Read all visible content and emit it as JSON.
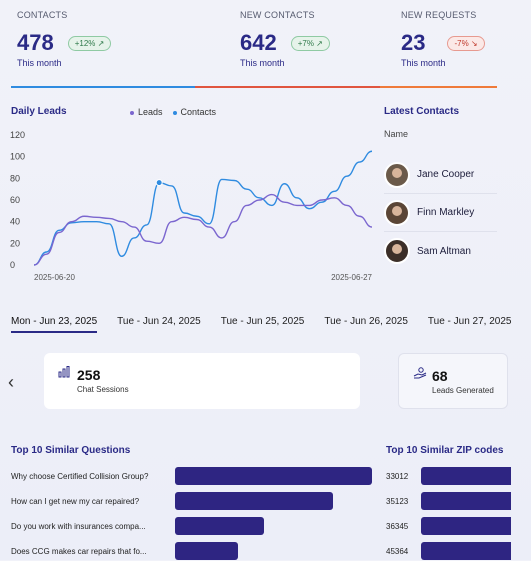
{
  "stats": [
    {
      "label": "CONTACTS",
      "value": "478",
      "change": "+12% ↗",
      "trend": "up",
      "period": "This month"
    },
    {
      "label": "NEW CONTACTS",
      "value": "642",
      "change": "+7% ↗",
      "trend": "up",
      "period": "This month"
    },
    {
      "label": "NEW REQUESTS",
      "value": "23",
      "change": "-7% ↘",
      "trend": "down",
      "period": "This month"
    }
  ],
  "colors": {
    "blue": "#2f8be0",
    "red": "#e0553f",
    "orange": "#ef7a3a",
    "purple": "#7b66cf",
    "navy": "#2e2582"
  },
  "daily_leads": {
    "title": "Daily Leads",
    "legend_leads": "Leads",
    "legend_contacts": "Contacts"
  },
  "chart_data": {
    "type": "line",
    "title": "Daily Leads",
    "x_start_label": "2025-06-20",
    "x_end_label": "2025-06-27",
    "y_ticks": [
      0,
      20,
      40,
      60,
      80,
      100,
      120
    ],
    "ylim": [
      0,
      120
    ],
    "grid": false,
    "series": [
      {
        "name": "Contacts",
        "color": "#2f8be0",
        "values": [
          0,
          12,
          32,
          39,
          40,
          40,
          38,
          8,
          25,
          37,
          76,
          73,
          48,
          45,
          38,
          79,
          78,
          70,
          62,
          55,
          75,
          62,
          52,
          58,
          68,
          82,
          95,
          105
        ]
      },
      {
        "name": "Leads",
        "color": "#7b66cf",
        "values": [
          0,
          10,
          30,
          40,
          45,
          44,
          43,
          40,
          35,
          22,
          20,
          40,
          44,
          42,
          35,
          25,
          40,
          55,
          60,
          65,
          58,
          55,
          55,
          60,
          62,
          55,
          45,
          35
        ]
      }
    ]
  },
  "latest_contacts": {
    "title": "Latest Contacts",
    "column": "Name",
    "items": [
      {
        "name": "Jane Cooper"
      },
      {
        "name": "Finn Markley"
      },
      {
        "name": "Sam Altman"
      }
    ]
  },
  "date_tabs": [
    "Mon - Jun 23, 2025",
    "Tue - Jun 24, 2025",
    "Tue - Jun 25, 2025",
    "Tue - Jun 26, 2025",
    "Tue - Jun 27, 2025"
  ],
  "kpi_cards": [
    {
      "value": "258",
      "caption": "Chat Sessions",
      "icon": "chart-bar-icon"
    },
    {
      "value": "68",
      "caption": "Leads Generated",
      "icon": "hand-coin-icon"
    }
  ],
  "questions": {
    "title": "Top 10 Similar Questions",
    "items": [
      {
        "text": "Why choose Certified Collision Group?",
        "value": 1.0
      },
      {
        "text": "How can I get new my car repaired?",
        "value": 0.8
      },
      {
        "text": "Do you work with insurances compa...",
        "value": 0.45
      },
      {
        "text": "Does CCG makes car repairs that fo...",
        "value": 0.32
      }
    ]
  },
  "zip_codes": {
    "title": "Top 10 Similar ZIP codes",
    "items": [
      {
        "code": "33012"
      },
      {
        "code": "35123"
      },
      {
        "code": "36345"
      },
      {
        "code": "45364"
      }
    ]
  }
}
